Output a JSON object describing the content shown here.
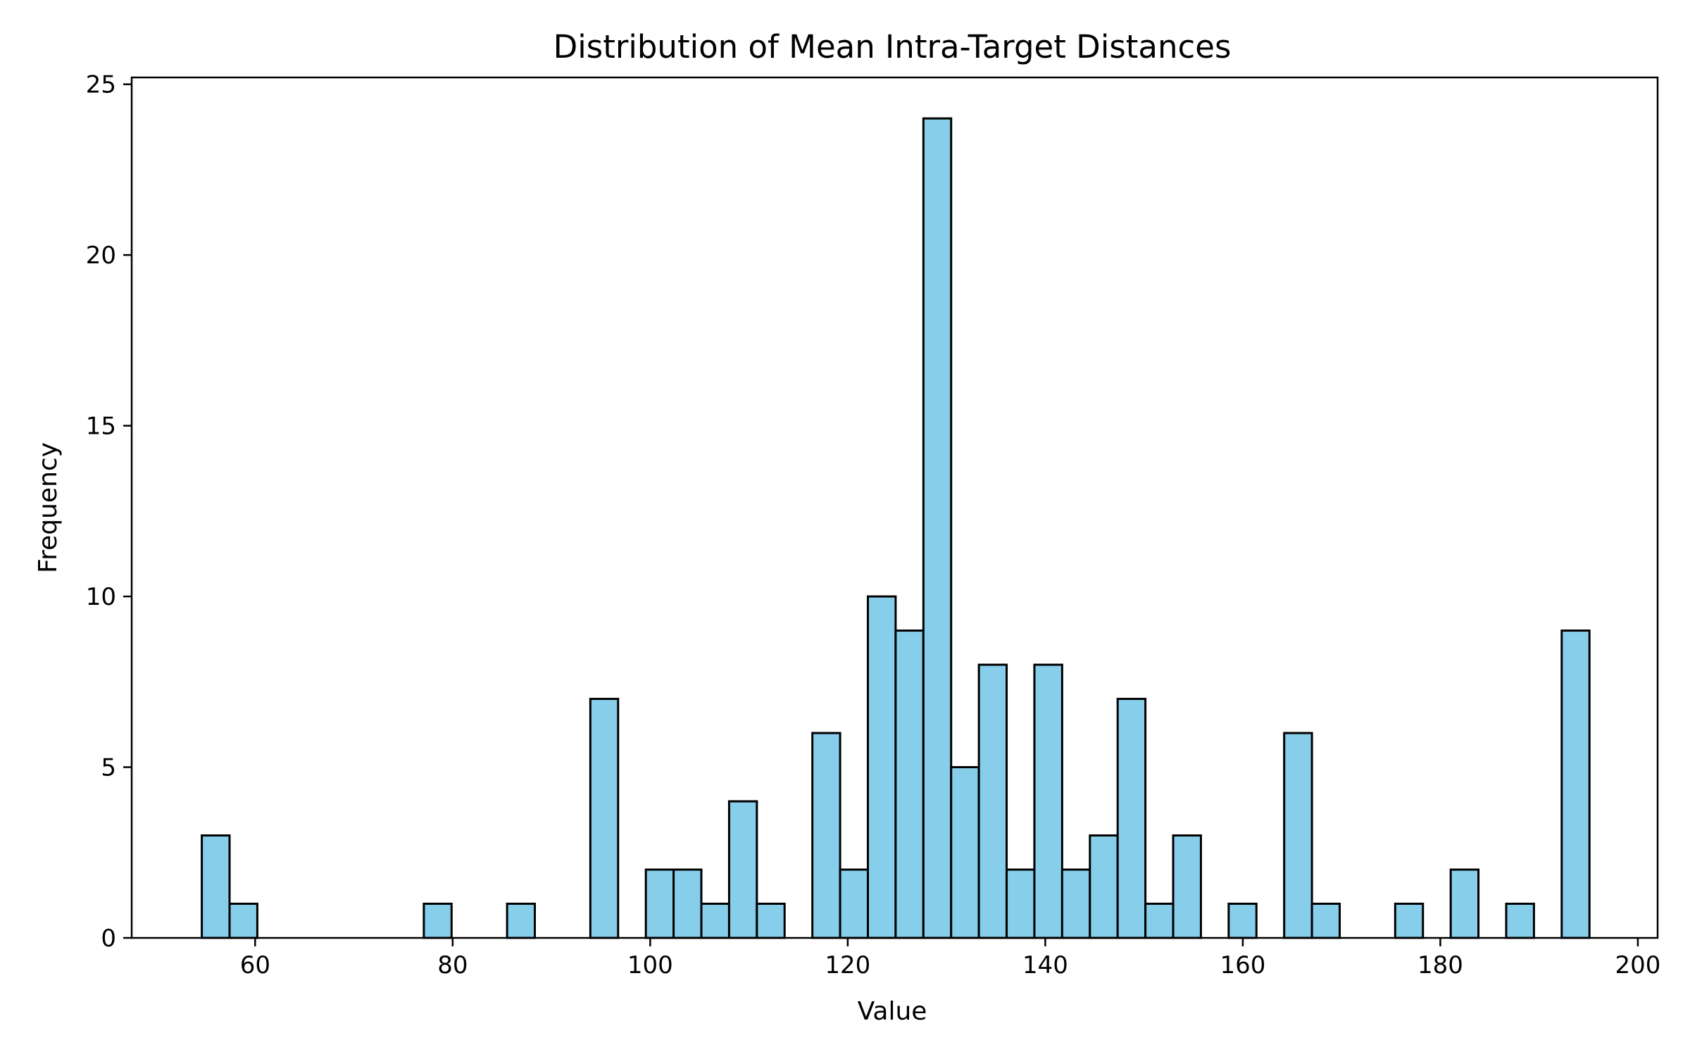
{
  "chart_data": {
    "type": "bar",
    "title": "Distribution of Mean Intra-Target Distances",
    "xlabel": "Value",
    "ylabel": "Frequency",
    "xlim": [
      47.5,
      202
    ],
    "ylim": [
      0,
      25.2
    ],
    "x_ticks": [
      60,
      80,
      100,
      120,
      140,
      160,
      180,
      200
    ],
    "y_ticks": [
      0,
      5,
      10,
      15,
      20,
      25
    ],
    "bin_start": 54.6,
    "bin_width": 2.81,
    "counts": [
      3,
      1,
      0,
      0,
      0,
      0,
      0,
      0,
      1,
      0,
      0,
      1,
      0,
      0,
      7,
      0,
      2,
      2,
      1,
      4,
      1,
      0,
      6,
      2,
      10,
      9,
      24,
      5,
      8,
      2,
      8,
      2,
      3,
      7,
      1,
      3,
      0,
      1,
      0,
      6,
      1,
      0,
      0,
      1,
      0,
      2,
      0,
      1,
      0,
      9
    ],
    "grid": false,
    "legend": "none",
    "colors": {
      "bar_fill": "#87ceeb",
      "bar_edge": "#000000",
      "axis": "#000000"
    }
  }
}
